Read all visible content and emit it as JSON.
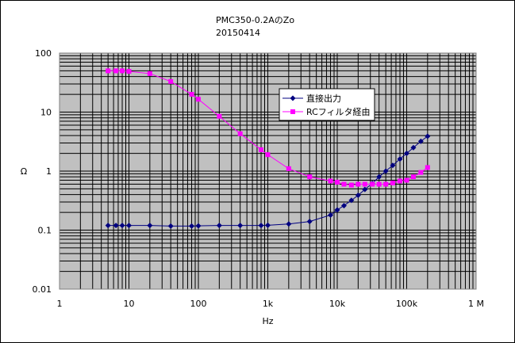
{
  "chart_data": {
    "type": "line",
    "title_lines": [
      "PMC350-0.2AのZo",
      "20150414"
    ],
    "xlabel": "Hz",
    "ylabel": "Ω",
    "x_scale": "log",
    "y_scale": "log",
    "xlim": [
      1,
      1000000
    ],
    "ylim": [
      0.01,
      100
    ],
    "x_ticks": [
      {
        "value": 1,
        "label": "1"
      },
      {
        "value": 10,
        "label": "10"
      },
      {
        "value": 100,
        "label": "100"
      },
      {
        "value": 1000,
        "label": "1k"
      },
      {
        "value": 10000,
        "label": "10k"
      },
      {
        "value": 100000,
        "label": "100k"
      },
      {
        "value": 1000000,
        "label": "1 M"
      }
    ],
    "y_ticks": [
      {
        "value": 100,
        "label": "100"
      },
      {
        "value": 10,
        "label": "10"
      },
      {
        "value": 1,
        "label": "1"
      },
      {
        "value": 0.1,
        "label": "0.1"
      },
      {
        "value": 0.01,
        "label": "0.01"
      }
    ],
    "grid": true,
    "legend_position": "upper-right",
    "series": [
      {
        "name": "直接出力",
        "color": "#000080",
        "marker": "diamond",
        "x": [
          5,
          6.5,
          8,
          10,
          20,
          40,
          80,
          100,
          200,
          400,
          800,
          1000,
          2000,
          4000,
          8000,
          10000,
          12500,
          16000,
          20000,
          25000,
          32000,
          40000,
          50000,
          63000,
          80000,
          100000,
          125000,
          160000,
          200000
        ],
        "values": [
          0.12,
          0.12,
          0.12,
          0.12,
          0.12,
          0.117,
          0.117,
          0.118,
          0.12,
          0.12,
          0.12,
          0.121,
          0.127,
          0.14,
          0.18,
          0.22,
          0.26,
          0.32,
          0.39,
          0.49,
          0.62,
          0.8,
          1.0,
          1.25,
          1.6,
          2.0,
          2.5,
          3.2,
          3.9
        ]
      },
      {
        "name": "RCフィルタ経由",
        "color": "#ff00ff",
        "marker": "square",
        "x": [
          5,
          6.5,
          8,
          10,
          20,
          40,
          80,
          100,
          200,
          400,
          800,
          1000,
          2000,
          4000,
          8000,
          10000,
          12500,
          16000,
          20000,
          25000,
          32000,
          40000,
          50000,
          63000,
          80000,
          100000,
          125000,
          160000,
          200000
        ],
        "values": [
          50,
          50,
          50,
          49,
          45,
          33,
          20,
          16.5,
          8.5,
          4.3,
          2.3,
          1.9,
          1.1,
          0.8,
          0.68,
          0.65,
          0.6,
          0.58,
          0.6,
          0.6,
          0.6,
          0.6,
          0.6,
          0.63,
          0.68,
          0.7,
          0.8,
          0.95,
          1.15
        ]
      }
    ]
  }
}
